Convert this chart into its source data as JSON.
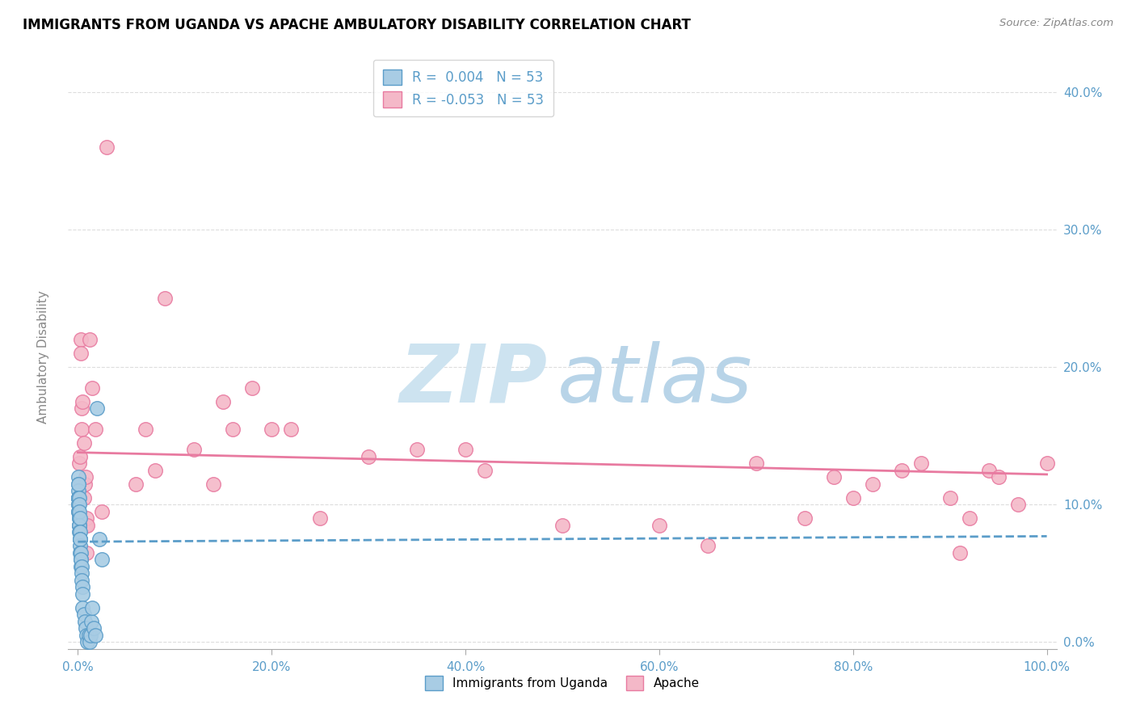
{
  "title": "IMMIGRANTS FROM UGANDA VS APACHE AMBULATORY DISABILITY CORRELATION CHART",
  "source": "Source: ZipAtlas.com",
  "ylabel": "Ambulatory Disability",
  "legend_entry1": "R =  0.004   N = 53",
  "legend_entry2": "R = -0.053   N = 53",
  "legend_label1": "Immigrants from Uganda",
  "legend_label2": "Apache",
  "blue_color": "#a8cce4",
  "pink_color": "#f4b8c8",
  "blue_edge_color": "#5b9dc9",
  "pink_edge_color": "#e87aa0",
  "blue_line_color": "#5b9dc9",
  "pink_line_color": "#e87aa0",
  "blue_scatter_x": [
    0.0002,
    0.0003,
    0.0003,
    0.0004,
    0.0005,
    0.0005,
    0.0006,
    0.0006,
    0.0007,
    0.0007,
    0.0008,
    0.0009,
    0.001,
    0.001,
    0.001,
    0.0012,
    0.0013,
    0.0014,
    0.0015,
    0.0016,
    0.0017,
    0.0018,
    0.002,
    0.002,
    0.0022,
    0.0023,
    0.0025,
    0.0026,
    0.0028,
    0.003,
    0.003,
    0.0032,
    0.0035,
    0.004,
    0.004,
    0.0045,
    0.005,
    0.005,
    0.006,
    0.007,
    0.008,
    0.009,
    0.01,
    0.011,
    0.012,
    0.013,
    0.014,
    0.015,
    0.016,
    0.018,
    0.02,
    0.022,
    0.025
  ],
  "blue_scatter_y": [
    0.12,
    0.115,
    0.11,
    0.105,
    0.115,
    0.105,
    0.1,
    0.095,
    0.105,
    0.095,
    0.105,
    0.1,
    0.105,
    0.09,
    0.085,
    0.1,
    0.085,
    0.09,
    0.095,
    0.085,
    0.08,
    0.075,
    0.09,
    0.08,
    0.075,
    0.07,
    0.075,
    0.065,
    0.06,
    0.065,
    0.055,
    0.06,
    0.055,
    0.05,
    0.045,
    0.04,
    0.035,
    0.025,
    0.02,
    0.015,
    0.01,
    0.005,
    0.0,
    0.005,
    0.0,
    0.005,
    0.015,
    0.025,
    0.01,
    0.005,
    0.17,
    0.075,
    0.06
  ],
  "pink_scatter_x": [
    0.001,
    0.002,
    0.003,
    0.003,
    0.004,
    0.004,
    0.005,
    0.006,
    0.006,
    0.007,
    0.008,
    0.008,
    0.009,
    0.009,
    0.01,
    0.012,
    0.015,
    0.018,
    0.025,
    0.03,
    0.06,
    0.07,
    0.08,
    0.09,
    0.12,
    0.14,
    0.15,
    0.16,
    0.18,
    0.2,
    0.22,
    0.25,
    0.3,
    0.35,
    0.4,
    0.42,
    0.5,
    0.6,
    0.65,
    0.7,
    0.75,
    0.78,
    0.8,
    0.82,
    0.85,
    0.87,
    0.9,
    0.91,
    0.92,
    0.94,
    0.95,
    0.97,
    1.0
  ],
  "pink_scatter_y": [
    0.13,
    0.135,
    0.22,
    0.21,
    0.17,
    0.155,
    0.175,
    0.145,
    0.105,
    0.115,
    0.12,
    0.085,
    0.09,
    0.065,
    0.085,
    0.22,
    0.185,
    0.155,
    0.095,
    0.36,
    0.115,
    0.155,
    0.125,
    0.25,
    0.14,
    0.115,
    0.175,
    0.155,
    0.185,
    0.155,
    0.155,
    0.09,
    0.135,
    0.14,
    0.14,
    0.125,
    0.085,
    0.085,
    0.07,
    0.13,
    0.09,
    0.12,
    0.105,
    0.115,
    0.125,
    0.13,
    0.105,
    0.065,
    0.09,
    0.125,
    0.12,
    0.1,
    0.13
  ],
  "blue_trend_x": [
    0.0,
    1.0
  ],
  "blue_trend_y": [
    0.073,
    0.077
  ],
  "pink_trend_x": [
    0.0,
    1.0
  ],
  "pink_trend_y": [
    0.138,
    0.122
  ],
  "xlim": [
    -0.01,
    1.01
  ],
  "ylim": [
    -0.005,
    0.42
  ],
  "ytick_vals": [
    0.0,
    0.1,
    0.2,
    0.3,
    0.4
  ],
  "ytick_labels": [
    "0.0%",
    "10.0%",
    "20.0%",
    "30.0%",
    "40.0%"
  ],
  "xtick_vals": [
    0.0,
    0.2,
    0.4,
    0.6,
    0.8,
    1.0
  ],
  "xtick_labels": [
    "0.0%",
    "20.0%",
    "40.0%",
    "60.0%",
    "80.0%",
    "100.0%"
  ],
  "tick_color": "#5b9dc9",
  "grid_color": "#dddddd",
  "watermark_zip_color": "#cde3f0",
  "watermark_atlas_color": "#b8d4e8"
}
